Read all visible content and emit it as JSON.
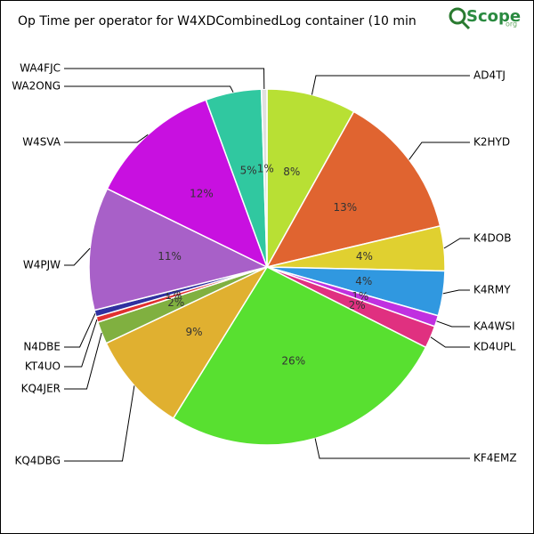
{
  "chart_data": {
    "type": "pie",
    "title": "Op Time per operator for W4XDCombinedLog container (10 min",
    "logo": {
      "name": "Scope",
      "suffix": "org"
    },
    "categories": [
      "AD4TJ",
      "K2HYD",
      "K4DOB",
      "K4RMY",
      "KA4WSI",
      "KD4UPL",
      "KF4EMZ",
      "KQ4DBG",
      "KQ4JER",
      "KT4UO",
      "N4DBE",
      "W4PJW",
      "W4SVA",
      "WA2ONG",
      "WA4FJC"
    ],
    "values": [
      8,
      13,
      4,
      4,
      1,
      2,
      26,
      9,
      2,
      0.5,
      0.6,
      11,
      12,
      5,
      0.5
    ],
    "value_labels": [
      "8%",
      "13%",
      "4%",
      "4%",
      "1%",
      "2%",
      "26%",
      "9%",
      "2%",
      "1%",
      "1%",
      "11%",
      "12%",
      "5%",
      "1%"
    ],
    "colors": [
      "#b8e034",
      "#e06430",
      "#e0d030",
      "#3098e0",
      "#c030e0",
      "#e03080",
      "#58e030",
      "#e0b030",
      "#80b040",
      "#e03030",
      "#3030a0",
      "#a860c8",
      "#c810e0",
      "#30c8a0",
      "#e0e0e0"
    ]
  }
}
